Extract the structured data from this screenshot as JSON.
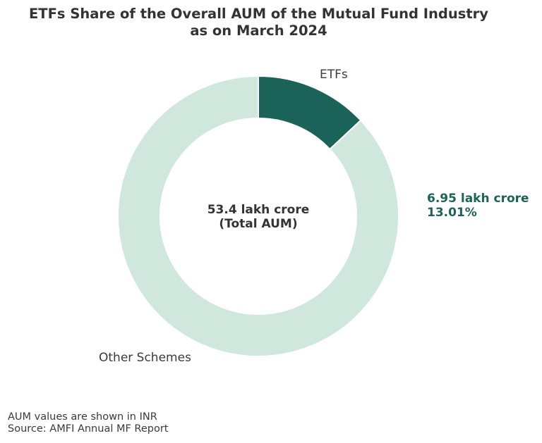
{
  "chart_data": {
    "type": "pie",
    "donut": true,
    "title_lines": [
      "ETFs Share of the Overall AUM of the Mutual Fund Industry",
      "as on March 2024"
    ],
    "categories": [
      "ETFs",
      "Other Schemes"
    ],
    "values": [
      13.01,
      86.99
    ],
    "colors": [
      "#1b6358",
      "#cfe7dc"
    ],
    "center_label": [
      "53.4 lakh crore",
      "(Total AUM)"
    ],
    "annotation": [
      "6.95 lakh crore",
      "13.01%"
    ],
    "annotation_color": "#1b6358",
    "start_angle": "12 o'clock",
    "direction": "clockwise"
  },
  "footer": [
    "AUM values are shown in INR",
    "Source: AMFI Annual MF Report"
  ]
}
